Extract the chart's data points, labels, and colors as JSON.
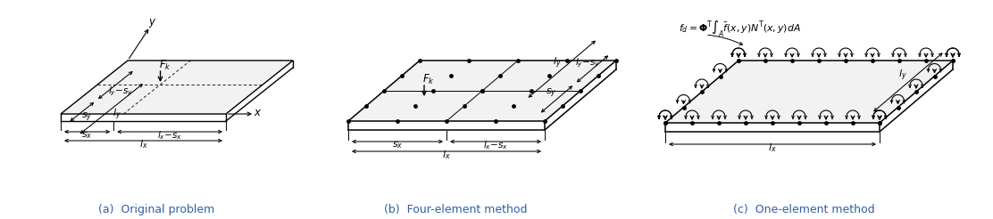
{
  "fig_width": 11.12,
  "fig_height": 2.46,
  "dpi": 100,
  "bg_color": "#ffffff",
  "line_color": "#000000",
  "dot_color": "#000000",
  "caption_color": "#3060a0",
  "caption_a": "(a)  Original problem",
  "caption_b": "(b)  Four-element method",
  "caption_c": "(c)  One-element method",
  "caption_fontsize": 9.0
}
